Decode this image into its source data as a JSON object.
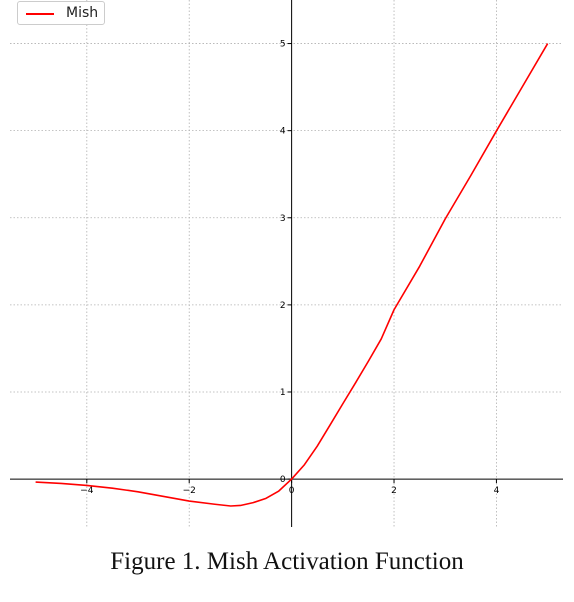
{
  "chart_data": {
    "type": "line",
    "series": [
      {
        "name": "Mish",
        "color": "#ff0000",
        "x": [
          -5,
          -4.5,
          -4,
          -3.5,
          -3,
          -2.5,
          -2,
          -1.5,
          -1.19,
          -1,
          -0.75,
          -0.5,
          -0.25,
          0,
          0.25,
          0.5,
          0.75,
          1,
          1.25,
          1.5,
          1.75,
          2,
          2.5,
          3,
          3.5,
          4,
          4.5,
          5
        ],
        "y": [
          -0.034,
          -0.05,
          -0.073,
          -0.104,
          -0.146,
          -0.199,
          -0.252,
          -0.289,
          -0.309,
          -0.303,
          -0.27,
          -0.221,
          -0.137,
          0,
          0.165,
          0.378,
          0.62,
          0.865,
          1.107,
          1.354,
          1.609,
          1.944,
          2.443,
          2.987,
          3.485,
          3.997,
          4.498,
          5.0
        ]
      }
    ],
    "xlim": [
      -5.5,
      5.3
    ],
    "ylim": [
      -0.55,
      5.5
    ],
    "xticks": [
      -4,
      -2,
      0,
      2,
      4
    ],
    "xtick_labels": [
      "−4",
      "−2",
      "0",
      "2",
      "4"
    ],
    "yticks": [
      0,
      1,
      2,
      3,
      4,
      5
    ],
    "ytick_labels": [
      "0",
      "1",
      "2",
      "3",
      "4",
      "5"
    ],
    "grid": true,
    "legend_position": "top-left",
    "axes_style": "centered-spines"
  },
  "legend": {
    "label": "Mish",
    "color": "#ff0000"
  },
  "caption": "Figure 1.  Mish Activation Function"
}
